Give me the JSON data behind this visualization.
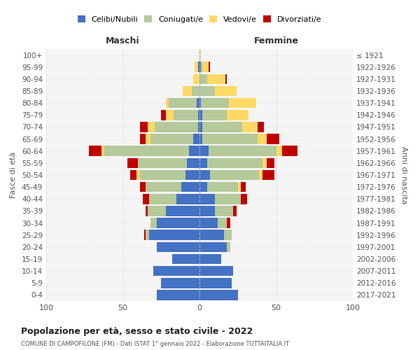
{
  "age_groups": [
    "0-4",
    "5-9",
    "10-14",
    "15-19",
    "20-24",
    "25-29",
    "30-34",
    "35-39",
    "40-44",
    "45-49",
    "50-54",
    "55-59",
    "60-64",
    "65-69",
    "70-74",
    "75-79",
    "80-84",
    "85-89",
    "90-94",
    "95-99",
    "100+"
  ],
  "birth_years": [
    "2017-2021",
    "2012-2016",
    "2007-2011",
    "2002-2006",
    "1997-2001",
    "1992-1996",
    "1987-1991",
    "1982-1986",
    "1977-1981",
    "1972-1976",
    "1967-1971",
    "1962-1966",
    "1957-1961",
    "1952-1956",
    "1947-1951",
    "1942-1946",
    "1937-1941",
    "1932-1936",
    "1927-1931",
    "1922-1926",
    "≤ 1921"
  ],
  "males": {
    "celibi": [
      28,
      25,
      30,
      18,
      28,
      33,
      28,
      22,
      15,
      12,
      9,
      8,
      7,
      4,
      1,
      1,
      2,
      0,
      0,
      1,
      0
    ],
    "coniugati": [
      0,
      0,
      0,
      0,
      0,
      2,
      4,
      12,
      18,
      23,
      30,
      32,
      55,
      28,
      28,
      16,
      18,
      5,
      0,
      0,
      0
    ],
    "vedovi": [
      0,
      0,
      0,
      0,
      0,
      0,
      0,
      0,
      0,
      0,
      2,
      0,
      2,
      3,
      5,
      5,
      2,
      6,
      4,
      2,
      0
    ],
    "divorziati": [
      0,
      0,
      0,
      0,
      0,
      1,
      0,
      1,
      4,
      4,
      4,
      7,
      8,
      4,
      5,
      3,
      0,
      0,
      0,
      0,
      0
    ]
  },
  "females": {
    "nubili": [
      25,
      21,
      22,
      14,
      18,
      16,
      12,
      10,
      10,
      5,
      7,
      5,
      6,
      2,
      2,
      2,
      1,
      0,
      0,
      1,
      0
    ],
    "coniugate": [
      0,
      0,
      0,
      0,
      2,
      5,
      6,
      12,
      17,
      20,
      32,
      36,
      44,
      36,
      26,
      16,
      18,
      10,
      5,
      1,
      0
    ],
    "vedove": [
      0,
      0,
      0,
      0,
      0,
      0,
      0,
      0,
      0,
      2,
      2,
      3,
      4,
      6,
      10,
      14,
      18,
      14,
      12,
      4,
      1
    ],
    "divorziate": [
      0,
      0,
      0,
      0,
      0,
      0,
      2,
      2,
      4,
      3,
      8,
      5,
      10,
      8,
      4,
      0,
      0,
      0,
      1,
      1,
      0
    ]
  },
  "colors": {
    "celibi": "#4472C4",
    "coniugati": "#b5c99a",
    "vedovi": "#ffd966",
    "divorziati": "#c00000"
  },
  "xlim": 100,
  "title": "Popolazione per età, sesso e stato civile - 2022",
  "subtitle": "COMUNE DI CAMPOFILONE (FM) - Dati ISTAT 1° gennaio 2022 - Elaborazione TUTTAITALIA.IT",
  "ylabel_left": "Fasce di età",
  "ylabel_right": "Anni di nascita",
  "xlabel_left": "Maschi",
  "xlabel_right": "Femmine",
  "background_color": "#ffffff",
  "grid_color": "#cccccc"
}
